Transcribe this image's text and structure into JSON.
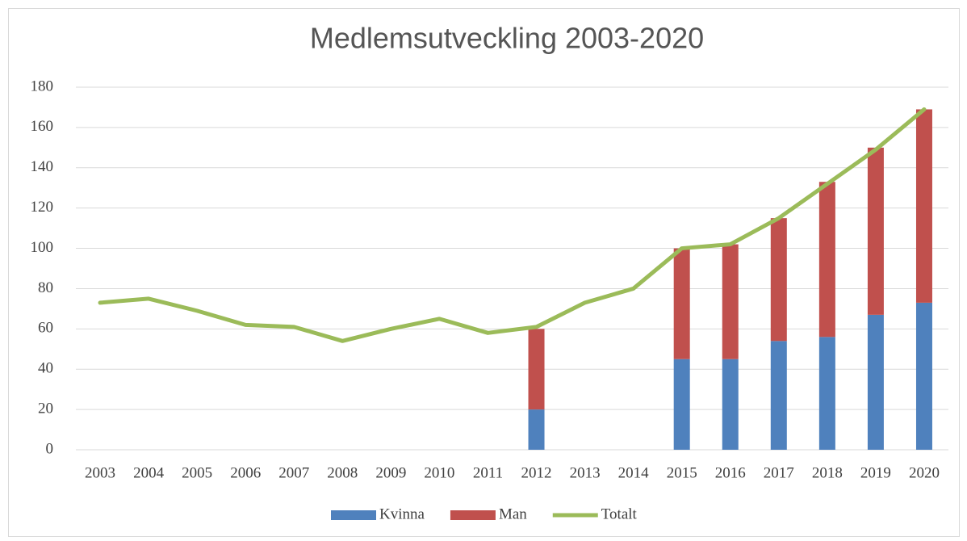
{
  "chart_data": {
    "type": "bar-line",
    "title": "Medlemsutveckling 2003-2020",
    "categories": [
      "2003",
      "2004",
      "2005",
      "2006",
      "2007",
      "2008",
      "2009",
      "2010",
      "2011",
      "2012",
      "2013",
      "2014",
      "2015",
      "2016",
      "2017",
      "2018",
      "2019",
      "2020"
    ],
    "series": [
      {
        "name": "Kvinna",
        "type": "bar",
        "color": "#4f81bd",
        "values": [
          null,
          null,
          null,
          null,
          null,
          null,
          null,
          null,
          null,
          20,
          null,
          null,
          45,
          45,
          54,
          56,
          67,
          73
        ]
      },
      {
        "name": "Man",
        "type": "bar",
        "color": "#c0504d",
        "values": [
          null,
          null,
          null,
          null,
          null,
          null,
          null,
          null,
          null,
          40,
          null,
          null,
          55,
          57,
          61,
          77,
          83,
          96
        ]
      },
      {
        "name": "Totalt",
        "type": "line",
        "color": "#9bbb59",
        "values": [
          73,
          75,
          69,
          62,
          61,
          54,
          60,
          65,
          58,
          61,
          73,
          80,
          100,
          102,
          115,
          132,
          149,
          169
        ]
      }
    ],
    "stacked": true,
    "ylim": [
      0,
      180
    ],
    "yticks": [
      0,
      20,
      40,
      60,
      80,
      100,
      120,
      140,
      160,
      180
    ],
    "grid": true,
    "legend": "bottom"
  }
}
